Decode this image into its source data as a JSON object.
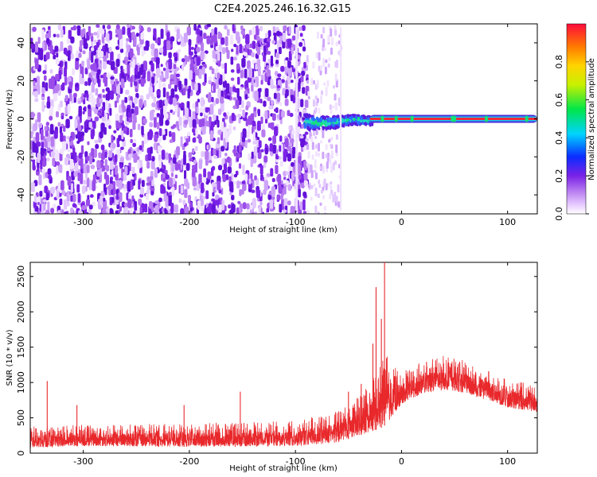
{
  "title": "C2E4.2025.246.16.32.G15",
  "colors": {
    "snr_line": "#e8282b",
    "text": "#000000",
    "frame": "#000000"
  },
  "chart_data": [
    {
      "type": "heatmap",
      "xlabel": "Height of straight line (km)",
      "ylabel": "Frequency (Hz)",
      "xlim": [
        -350,
        128
      ],
      "ylim": [
        -50,
        50
      ],
      "x_ticks": [
        "-300",
        "-200",
        "-100",
        "0",
        "100"
      ],
      "y_ticks": [
        "-40",
        "-20",
        "0",
        "20",
        "40"
      ],
      "colorbar": {
        "label": "Normalized spectral amplitude",
        "range": [
          0,
          1
        ],
        "ticks": [
          "0.0",
          "0.2",
          "0.4",
          "0.6",
          "0.8"
        ],
        "colormap": "rainbow (white, lavender, purple, blue, cyan, green, yellow, orange, red)"
      },
      "regions": [
        {
          "x_range": [
            -350,
            -90
          ],
          "frequency_range": [
            -50,
            50
          ],
          "amplitude": "low-to-medium scattered noise (purple)"
        },
        {
          "x_range": [
            -90,
            -58
          ],
          "frequency_range": [
            -50,
            50
          ],
          "amplitude": "sparse low noise (lavender)"
        },
        {
          "x_range": [
            -90,
            -30
          ],
          "frequency_center": -2,
          "amplitude": "medium-high (cyan/green)"
        },
        {
          "x_range": [
            -30,
            128
          ],
          "frequency_center": 0,
          "amplitude": "high, narrow line (red)"
        }
      ]
    },
    {
      "type": "line",
      "xlabel": "Height of straight line (km)",
      "ylabel": "SNR (10 * v/v)",
      "xlim": [
        -350,
        128
      ],
      "ylim": [
        0,
        2700
      ],
      "x_ticks": [
        "-300",
        "-200",
        "-100",
        "0",
        "100"
      ],
      "y_ticks": [
        "0",
        "500",
        "1000",
        "1500",
        "2000",
        "2500"
      ],
      "series": [
        {
          "color": "#e8282b",
          "envelope": [
            {
              "x": -350,
              "low": 80,
              "high": 380
            },
            {
              "x": -300,
              "low": 100,
              "high": 400
            },
            {
              "x": -200,
              "low": 90,
              "high": 420
            },
            {
              "x": -100,
              "low": 100,
              "high": 460
            },
            {
              "x": -60,
              "low": 150,
              "high": 600
            },
            {
              "x": -40,
              "low": 250,
              "high": 800
            },
            {
              "x": -30,
              "low": 300,
              "high": 1000
            },
            {
              "x": -20,
              "low": 350,
              "high": 1250
            },
            {
              "x": -15,
              "low": 400,
              "high": 1400
            },
            {
              "x": -10,
              "low": 500,
              "high": 1300
            },
            {
              "x": 0,
              "low": 700,
              "high": 1150
            },
            {
              "x": 20,
              "low": 850,
              "high": 1300
            },
            {
              "x": 40,
              "low": 900,
              "high": 1380
            },
            {
              "x": 60,
              "low": 850,
              "high": 1320
            },
            {
              "x": 80,
              "low": 750,
              "high": 1200
            },
            {
              "x": 100,
              "low": 650,
              "high": 1050
            },
            {
              "x": 128,
              "low": 580,
              "high": 950
            }
          ],
          "spikes": [
            {
              "x": -334,
              "y": 1020
            },
            {
              "x": -306,
              "y": 680
            },
            {
              "x": -205,
              "y": 680
            },
            {
              "x": -152,
              "y": 870
            },
            {
              "x": -50,
              "y": 870
            },
            {
              "x": -38,
              "y": 980
            },
            {
              "x": -27,
              "y": 1550
            },
            {
              "x": -24,
              "y": 2350
            },
            {
              "x": -19,
              "y": 1900
            },
            {
              "x": -16,
              "y": 2700
            }
          ]
        }
      ]
    }
  ]
}
